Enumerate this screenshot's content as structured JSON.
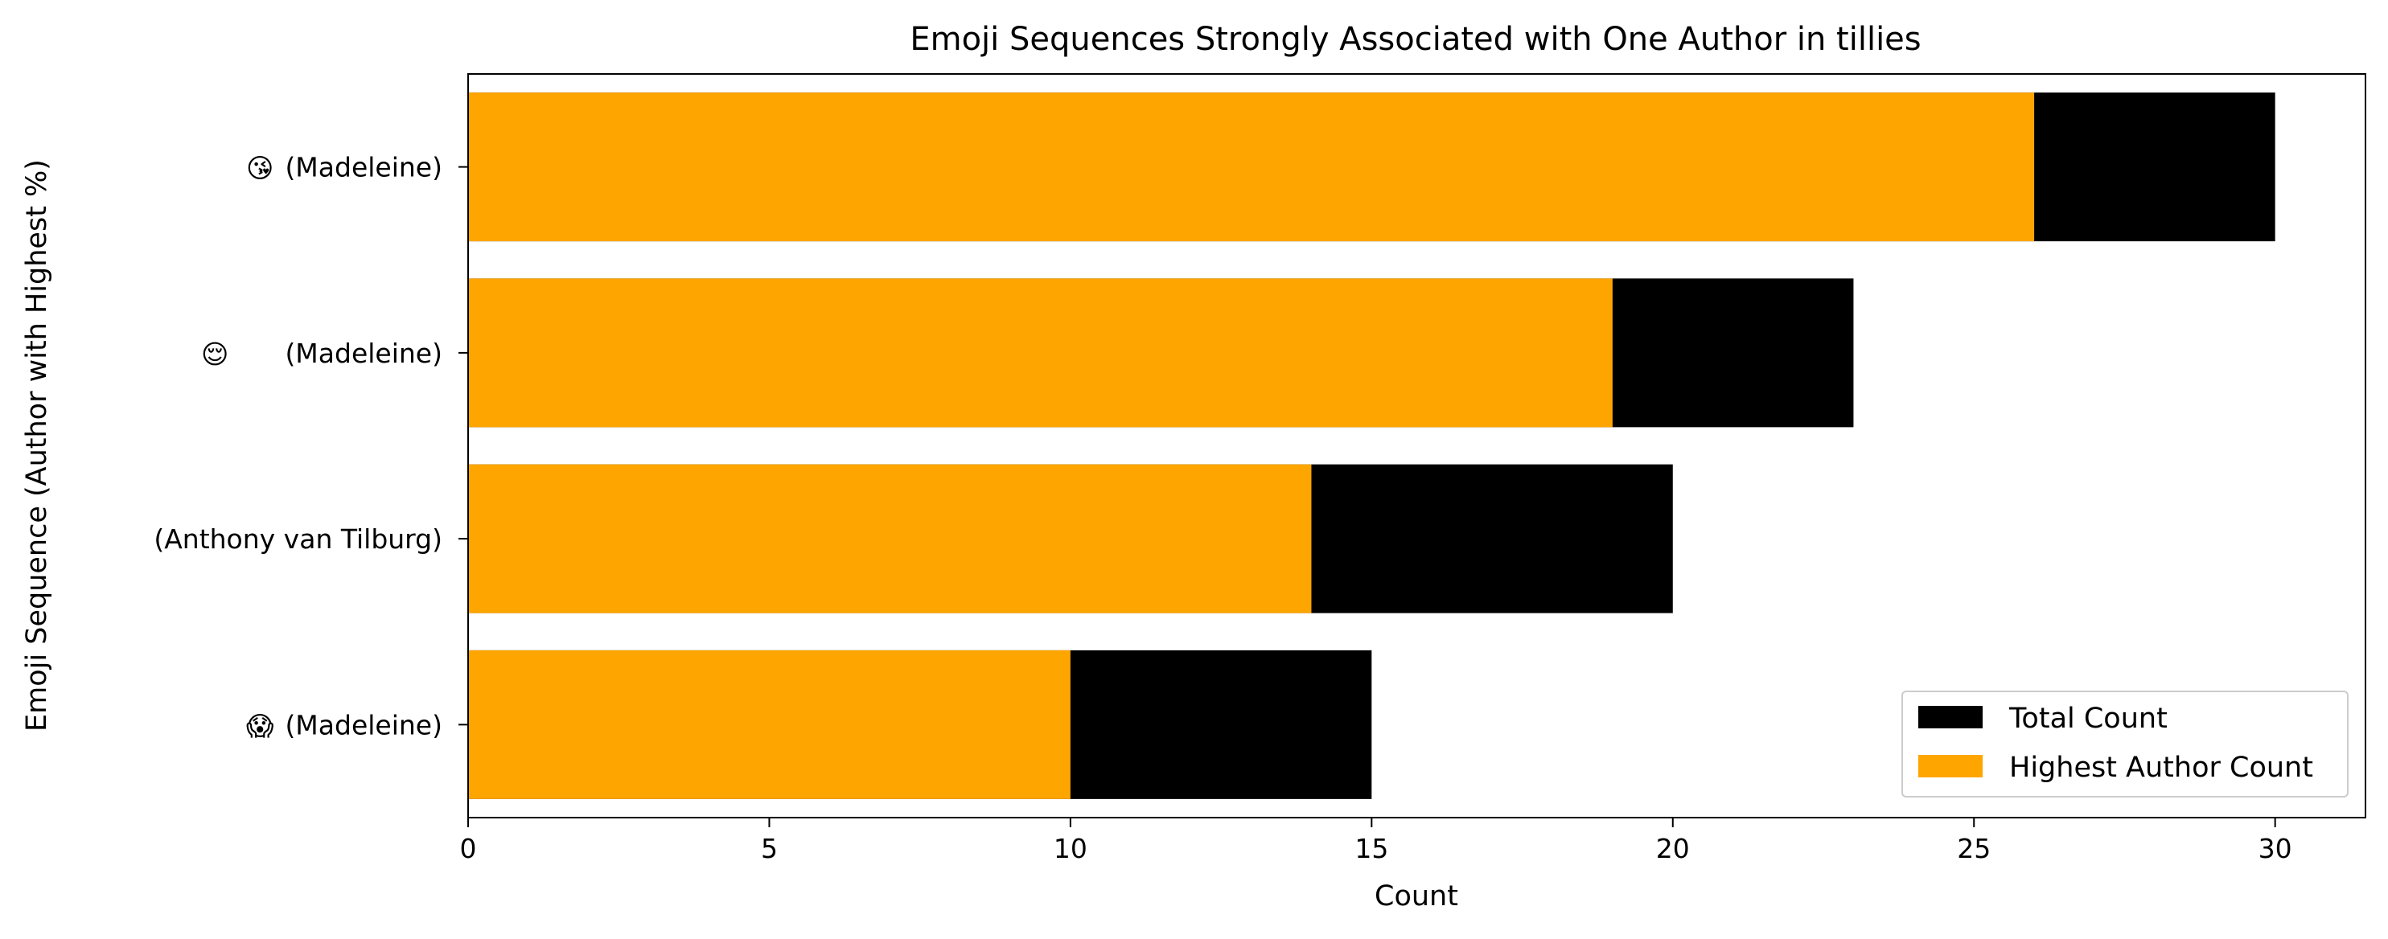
{
  "chart_data": {
    "type": "bar",
    "orientation": "horizontal",
    "stacked": false,
    "title": "Emoji Sequences Strongly Associated with One Author in tillies",
    "xlabel": "Count",
    "ylabel": "Emoji Sequence (Author with Highest %)",
    "xlim": [
      0,
      31.5
    ],
    "xticks": [
      0,
      5,
      10,
      15,
      20,
      25,
      30
    ],
    "categories": [
      {
        "emoji": "😘",
        "author": "(Madeleine)"
      },
      {
        "emoji": "😌",
        "author": "(Madeleine)"
      },
      {
        "emoji": "",
        "author": "(Anthony van Tilburg)"
      },
      {
        "emoji": "😱",
        "author": "(Madeleine)"
      }
    ],
    "series": [
      {
        "name": "Total Count",
        "color": "#000000",
        "values": [
          30,
          23,
          20,
          15
        ]
      },
      {
        "name": "Highest Author Count",
        "color": "#FFA500",
        "values": [
          26,
          19,
          14,
          10
        ]
      }
    ],
    "legend": {
      "position": "lower-right"
    },
    "grid": false
  }
}
